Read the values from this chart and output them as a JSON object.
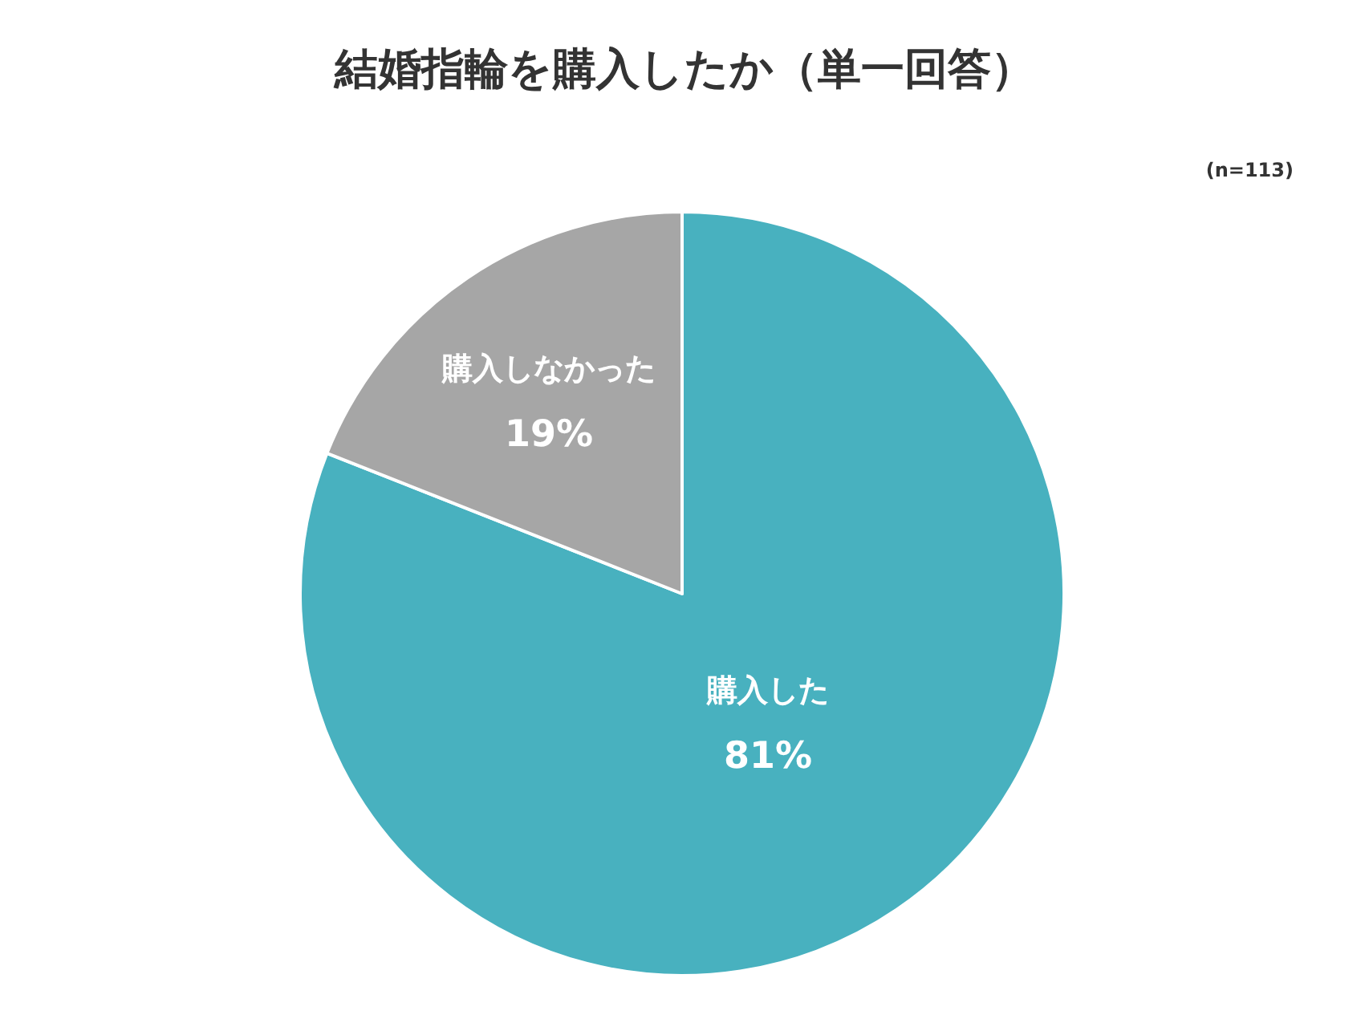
{
  "chart_data": {
    "type": "pie",
    "title": "結婚指輪を購入したか（単一回答）",
    "annotations": [
      "(n=113)"
    ],
    "categories": [
      "購入した",
      "購入しなかった"
    ],
    "values": [
      81,
      19
    ],
    "colors": [
      "#48b1bf",
      "#a6a6a6"
    ],
    "value_labels": [
      "81%",
      "19%"
    ],
    "legend": false
  }
}
